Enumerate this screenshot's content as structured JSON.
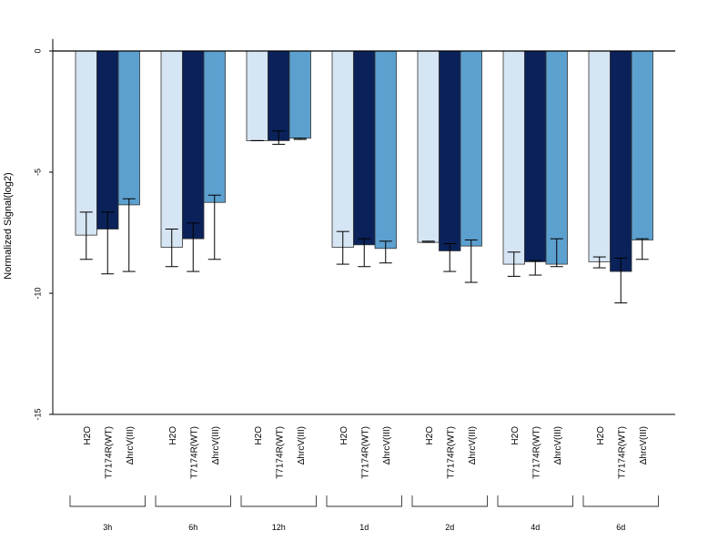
{
  "chart_data": {
    "type": "bar",
    "ylabel": "Normalized Signal(log2)",
    "ylim": [
      -15,
      0.5
    ],
    "yticks": [
      0,
      -5,
      -10,
      -15
    ],
    "ytick_labels": [
      "0",
      "-5",
      "-10",
      "-15"
    ],
    "groups": [
      "3h",
      "6h",
      "12h",
      "1d",
      "2d",
      "4d",
      "6d"
    ],
    "series": [
      {
        "name": "H2O",
        "color": "#d6e5f4",
        "values": [
          -7.6,
          -8.1,
          -3.7,
          -8.1,
          -7.9,
          -8.8,
          -8.7
        ],
        "err_low": [
          -8.6,
          -8.9,
          -3.7,
          -8.8,
          -7.9,
          -9.3,
          -8.95
        ],
        "err_high": [
          -6.65,
          -7.35,
          -3.7,
          -7.45,
          -7.85,
          -8.3,
          -8.5
        ]
      },
      {
        "name": "T7174R(WT)",
        "color": "#0a2259",
        "values": [
          -7.35,
          -7.75,
          -3.7,
          -8.0,
          -8.25,
          -8.7,
          -9.1
        ],
        "err_low": [
          -9.2,
          -9.1,
          -3.85,
          -8.9,
          -9.1,
          -9.25,
          -10.4
        ],
        "err_high": [
          -6.65,
          -7.1,
          -3.3,
          -7.75,
          -7.95,
          -8.65,
          -8.55
        ]
      },
      {
        "name": "ΔhrcV(III)",
        "color": "#5ca0cf",
        "values": [
          -6.35,
          -6.25,
          -3.6,
          -8.15,
          -8.05,
          -8.8,
          -7.8
        ],
        "err_low": [
          -9.1,
          -8.6,
          -3.65,
          -8.75,
          -9.55,
          -8.9,
          -8.6
        ],
        "err_high": [
          -6.1,
          -5.95,
          -3.6,
          -7.85,
          -7.8,
          -7.75,
          -7.75
        ]
      }
    ],
    "grid": false,
    "legend": "none"
  }
}
